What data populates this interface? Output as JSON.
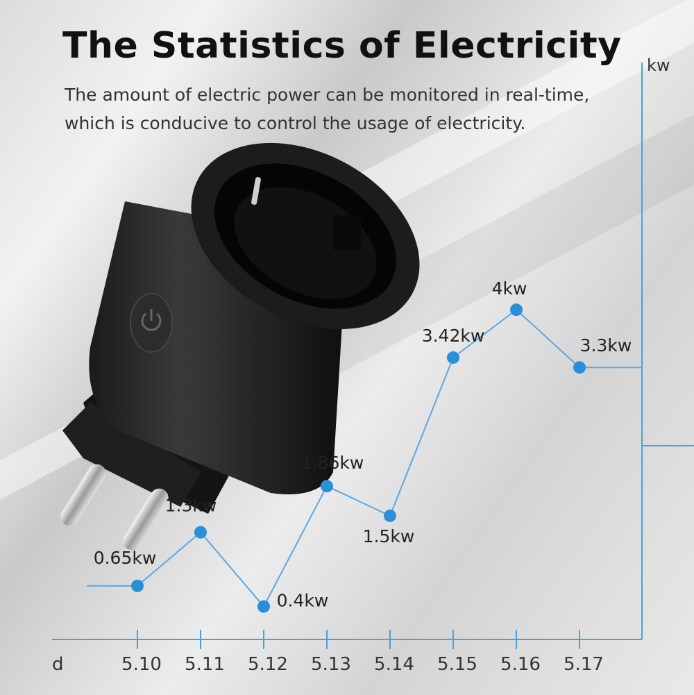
{
  "header": {
    "title": "The Statistics of Electricity",
    "subtitle_line1": "The amount of electric power can be monitored in real-time,",
    "subtitle_line2": "which is conducive to control the usage of electricity."
  },
  "colors": {
    "accent": "#2b8fd8",
    "text": "#222222"
  },
  "chart_data": {
    "type": "line",
    "xlabel": "d",
    "ylabel": "kw",
    "categories": [
      "5.10",
      "5.11",
      "5.12",
      "5.13",
      "5.14",
      "5.15",
      "5.16",
      "5.17"
    ],
    "series": [
      {
        "values": [
          0.65,
          1.3,
          0.4,
          1.86,
          1.5,
          3.42,
          4,
          3.3
        ],
        "labels": [
          "0.65kw",
          "1.3kw",
          "0.4kw",
          "1.86kw",
          "1.5kw",
          "3.42kw",
          "4kw",
          "3.3kw"
        ]
      }
    ],
    "ylim": [
      0,
      7
    ],
    "grid": false
  }
}
